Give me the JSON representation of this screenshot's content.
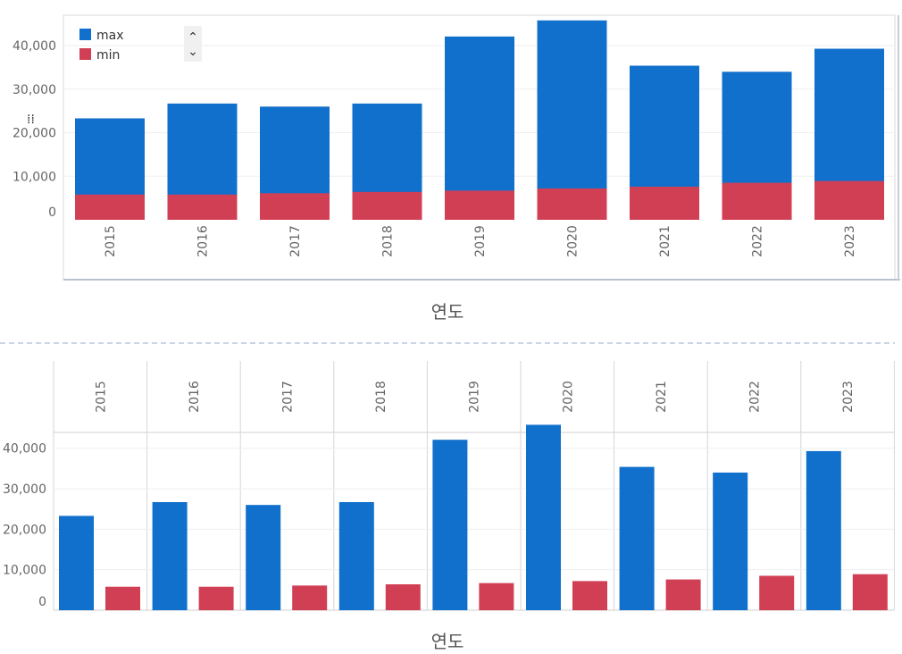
{
  "colors": {
    "max": "#1170cc",
    "min": "#d13f55"
  },
  "chart_data": [
    {
      "type": "bar",
      "stacking": "overlay",
      "categories": [
        "2015",
        "2016",
        "2017",
        "2018",
        "2019",
        "2020",
        "2021",
        "2022",
        "2023"
      ],
      "series": [
        {
          "name": "max",
          "values": [
            23300,
            26700,
            26000,
            26700,
            42100,
            45800,
            35400,
            34000,
            39300
          ]
        },
        {
          "name": "min",
          "values": [
            5800,
            5800,
            6100,
            6400,
            6700,
            7200,
            7600,
            8500,
            8900
          ]
        }
      ],
      "yticks": [
        "0",
        "10,000",
        "20,000",
        "30,000",
        "40,000"
      ],
      "ylim": [
        0,
        47000
      ],
      "xlabel": "연도",
      "legend": {
        "position": "top-left",
        "entries": [
          "max",
          "min"
        ],
        "scroll_up": "⌃",
        "scroll_down": "⌄"
      },
      "chart_icon": "⁞⁞"
    },
    {
      "type": "bar",
      "stacking": "grouped",
      "categories": [
        "2015",
        "2016",
        "2017",
        "2018",
        "2019",
        "2020",
        "2021",
        "2022",
        "2023"
      ],
      "series": [
        {
          "name": "max",
          "values": [
            23300,
            26700,
            26000,
            26700,
            42100,
            45800,
            35400,
            34000,
            39300
          ]
        },
        {
          "name": "min",
          "values": [
            5800,
            5800,
            6100,
            6400,
            6700,
            7200,
            7600,
            8500,
            8900
          ]
        }
      ],
      "yticks": [
        "0",
        "10,000",
        "20,000",
        "30,000",
        "40,000"
      ],
      "ylim": [
        0,
        47000
      ],
      "xlabel": "연도"
    }
  ]
}
